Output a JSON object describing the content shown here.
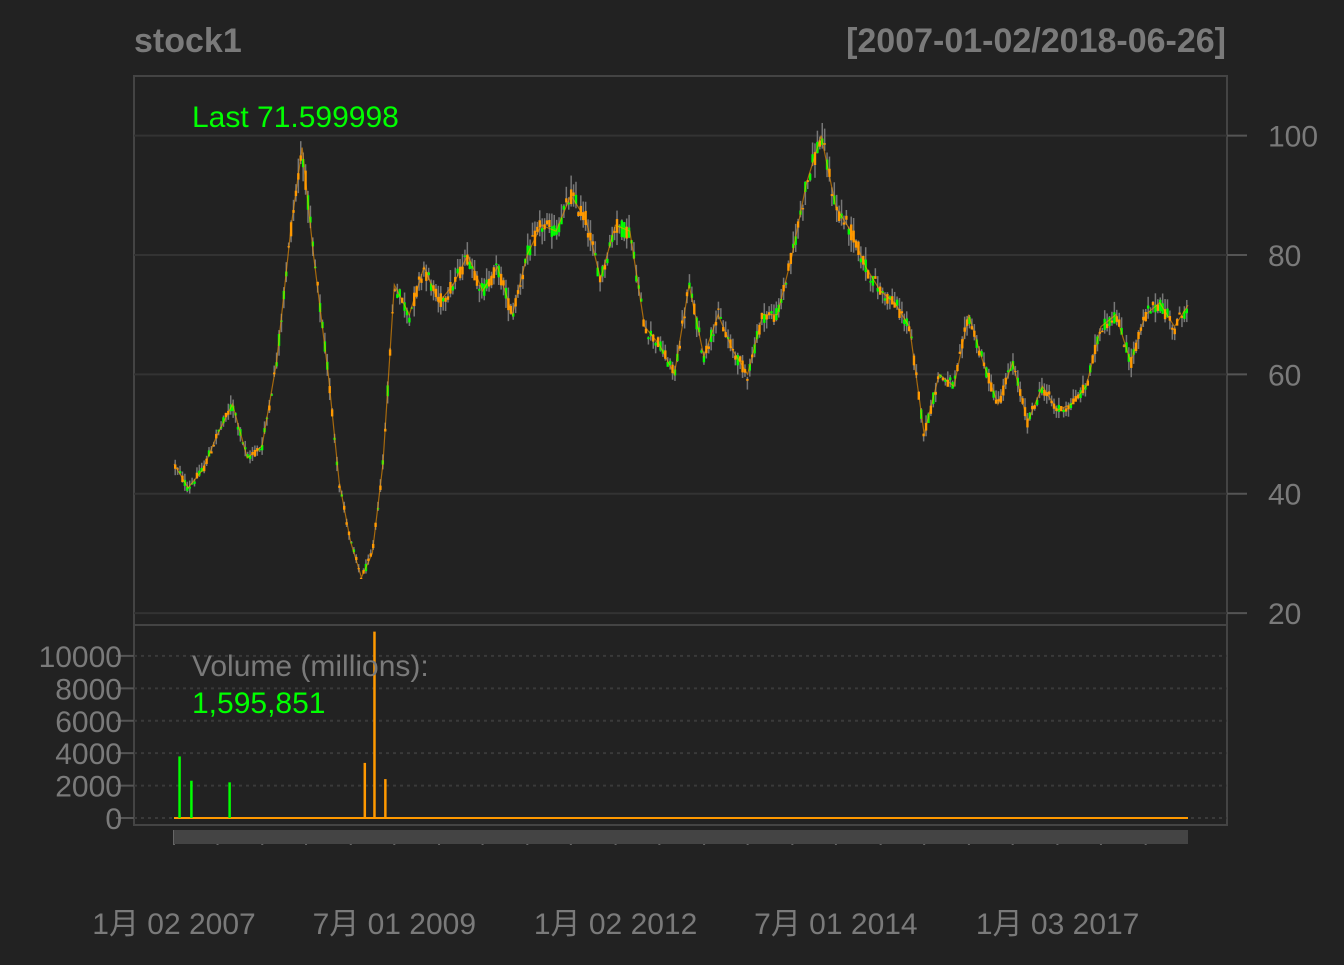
{
  "chart_data": {
    "type": "candlestick",
    "title": "stock1",
    "date_range": "[2007-01-02/2018-06-26]",
    "last_label": "Last 71.599998",
    "volume_label": "Volume (millions):",
    "volume_last": "1,595,851",
    "x_tick_labels": [
      "1月 02 2007",
      "7月 01 2009",
      "1月 02 2012",
      "7月 01 2014",
      "1月 03 2017"
    ],
    "x_range": [
      "2007-01-02",
      "2018-06-26"
    ],
    "price_axis": {
      "ticks": [
        20,
        40,
        60,
        80,
        100
      ],
      "ylim": [
        18,
        110
      ]
    },
    "volume_axis": {
      "ticks": [
        0,
        2000,
        4000,
        6000,
        8000,
        10000
      ],
      "ylim": [
        0,
        11600
      ]
    },
    "grid": true,
    "colors": {
      "background": "#222222",
      "up": "#00ff00",
      "down": "#ff9900",
      "text": "#7a7a7a",
      "highlight": "#00ff00",
      "grid": "#333333",
      "frame": "#444444"
    },
    "price_series": {
      "name": "Close",
      "x": [
        "2007-01-02",
        "2007-03-01",
        "2007-05-01",
        "2007-07-01",
        "2007-09-01",
        "2007-11-01",
        "2008-01-01",
        "2008-03-01",
        "2008-05-01",
        "2008-06-15",
        "2008-08-01",
        "2008-10-01",
        "2008-11-15",
        "2009-01-01",
        "2009-02-15",
        "2009-04-01",
        "2009-05-15",
        "2009-07-01",
        "2009-09-01",
        "2009-11-01",
        "2010-01-01",
        "2010-03-01",
        "2010-05-01",
        "2010-07-01",
        "2010-09-01",
        "2010-11-01",
        "2011-01-01",
        "2011-03-01",
        "2011-05-01",
        "2011-07-01",
        "2011-09-01",
        "2011-11-01",
        "2012-01-01",
        "2012-03-01",
        "2012-05-01",
        "2012-07-01",
        "2012-09-01",
        "2012-11-01",
        "2013-01-01",
        "2013-03-01",
        "2013-05-01",
        "2013-07-01",
        "2013-09-01",
        "2013-11-01",
        "2014-01-01",
        "2014-03-01",
        "2014-05-01",
        "2014-07-01",
        "2014-09-01",
        "2014-11-01",
        "2015-01-01",
        "2015-03-01",
        "2015-05-01",
        "2015-07-01",
        "2015-09-01",
        "2015-11-01",
        "2016-01-01",
        "2016-03-01",
        "2016-05-01",
        "2016-07-01",
        "2016-09-01",
        "2016-11-01",
        "2017-01-01",
        "2017-03-01",
        "2017-05-01",
        "2017-07-01",
        "2017-09-01",
        "2017-11-01",
        "2018-01-01",
        "2018-03-01",
        "2018-05-01",
        "2018-06-26"
      ],
      "values": [
        45,
        41,
        44,
        50,
        55,
        46,
        48,
        62,
        85,
        98,
        80,
        60,
        42,
        32,
        26,
        30,
        45,
        75,
        70,
        78,
        72,
        75,
        80,
        74,
        78,
        70,
        80,
        85,
        84,
        90,
        86,
        76,
        85,
        84,
        68,
        65,
        60,
        75,
        63,
        70,
        64,
        60,
        70,
        70,
        80,
        92,
        100,
        88,
        84,
        78,
        74,
        72,
        68,
        50,
        60,
        58,
        70,
        62,
        55,
        62,
        52,
        58,
        54,
        55,
        58,
        68,
        70,
        62,
        70,
        72,
        68,
        71.6
      ]
    },
    "volume_series": {
      "name": "Volume",
      "bars": [
        {
          "x": "2007-01-25",
          "value": 3800,
          "dir": "up"
        },
        {
          "x": "2007-03-15",
          "value": 2300,
          "dir": "up"
        },
        {
          "x": "2007-08-20",
          "value": 2200,
          "dir": "up"
        },
        {
          "x": "2009-03-01",
          "value": 3400,
          "dir": "down"
        },
        {
          "x": "2009-04-10",
          "value": 11500,
          "dir": "down"
        },
        {
          "x": "2009-05-25",
          "value": 2400,
          "dir": "down"
        }
      ]
    }
  }
}
